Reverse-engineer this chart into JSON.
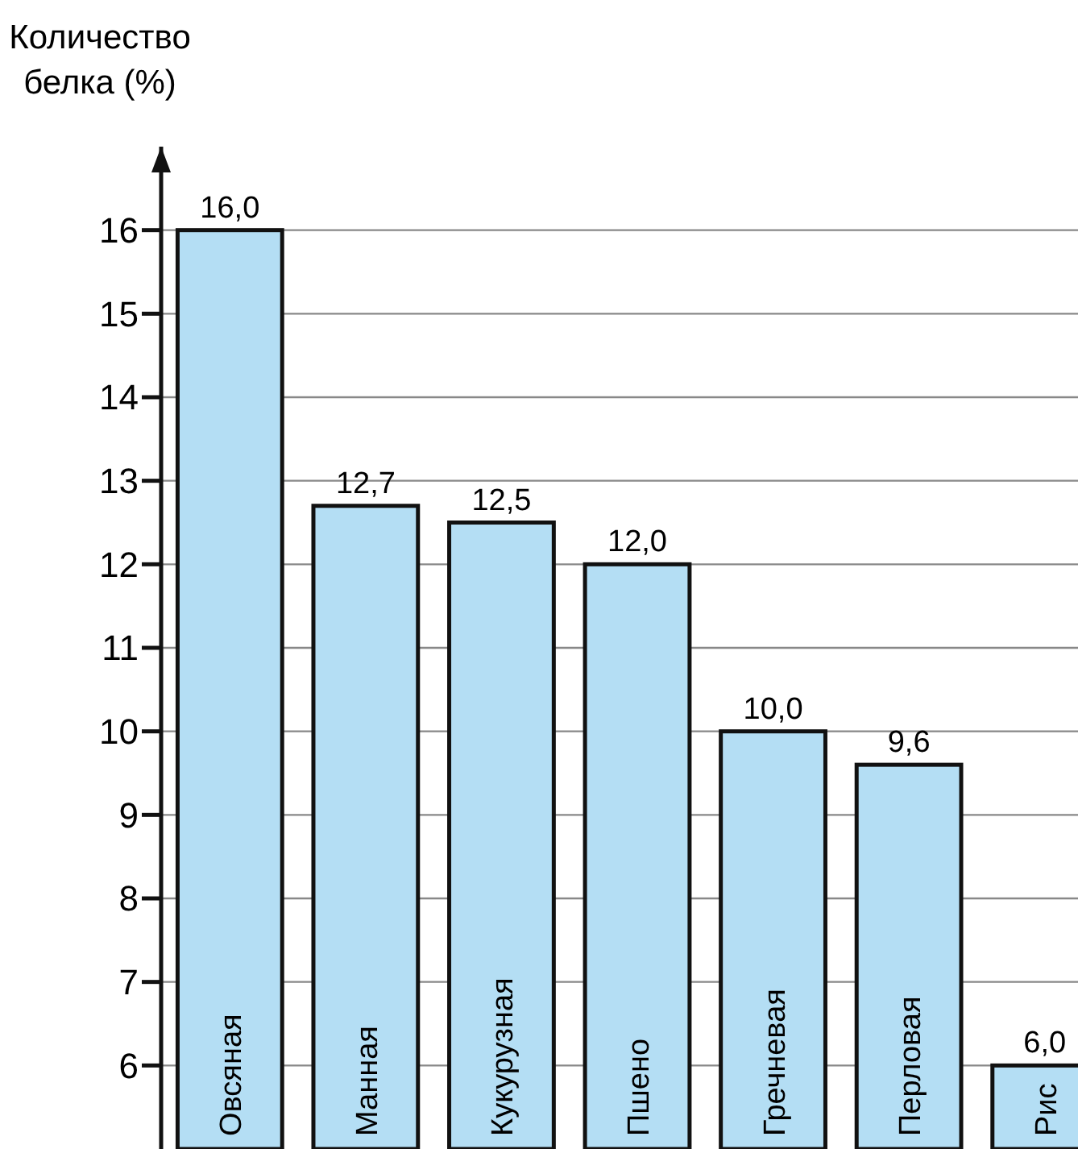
{
  "chart_data": {
    "type": "bar",
    "ylabel": "Количество белка (%)",
    "categories": [
      "Овсяная",
      "Манная",
      "Кукурузная",
      "Пшено",
      "Гречневая",
      "Перловая",
      "Рис"
    ],
    "values": [
      16.0,
      12.7,
      12.5,
      12.0,
      10.0,
      9.6,
      6.0
    ],
    "value_labels": [
      "16,0",
      "12,7",
      "12,5",
      "12,0",
      "10,0",
      "9,6",
      "6,0"
    ],
    "color": "#b4def4",
    "ylim": [
      5,
      17
    ],
    "yticks": [
      6,
      7,
      8,
      9,
      10,
      11,
      12,
      13,
      14,
      15,
      16
    ],
    "grid": "y"
  }
}
